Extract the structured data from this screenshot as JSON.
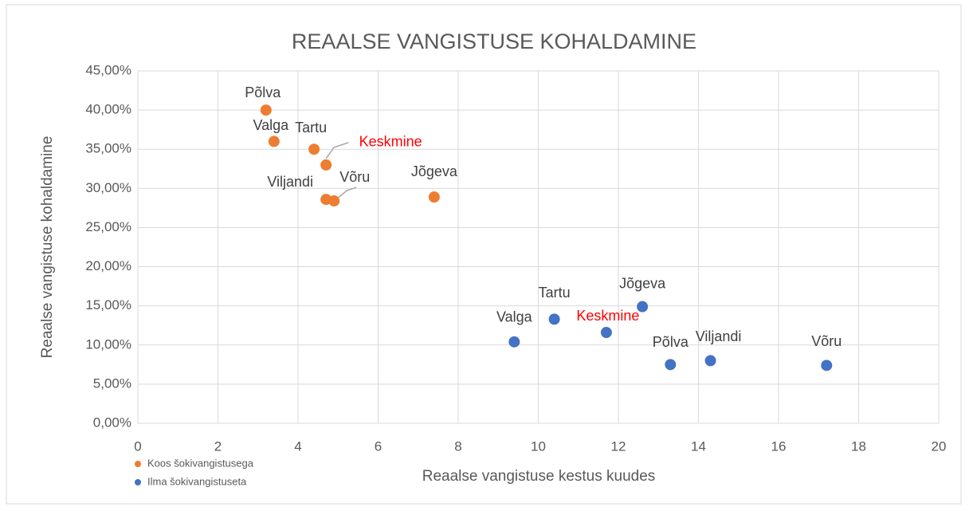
{
  "chart_data": {
    "type": "scatter",
    "title": "REAALSE VANGISTUSE KOHALDAMINE",
    "x_label": "Reaalse vangistuse kestus kuudes",
    "y_label": "Reaalse vangistuse kohaldamine",
    "xlim": [
      0,
      20
    ],
    "xticks": [
      0,
      2,
      4,
      6,
      8,
      10,
      12,
      14,
      16,
      18,
      20
    ],
    "ylim": [
      0,
      45
    ],
    "yticks": [
      {
        "value": 0,
        "label": "0,00%"
      },
      {
        "value": 5,
        "label": "5,00%"
      },
      {
        "value": 10,
        "label": "10,00%"
      },
      {
        "value": 15,
        "label": "15,00%"
      },
      {
        "value": 20,
        "label": "20,00%"
      },
      {
        "value": 25,
        "label": "25,00%"
      },
      {
        "value": 30,
        "label": "30,00%"
      },
      {
        "value": 35,
        "label": "35,00%"
      },
      {
        "value": 40,
        "label": "40,00%"
      },
      {
        "value": 45,
        "label": "45,00%"
      }
    ],
    "grid": true,
    "legend": "bottom-left",
    "series": [
      {
        "name": "Koos šokivangistusega",
        "color": "#ed7d31",
        "x": [
          3.2,
          3.4,
          4.4,
          4.7,
          4.7,
          4.9,
          7.4
        ],
        "values": [
          40,
          36,
          35,
          33,
          28.6,
          28.4,
          28.9
        ],
        "point_labels": [
          "Põlva",
          "Valga",
          "Tartu",
          "Keskmine",
          "Viljandi",
          "Võru",
          "Jõgeva"
        ],
        "label_colors": [
          "#404040",
          "#404040",
          "#404040",
          "#ff0000",
          "#404040",
          "#404040",
          "#404040"
        ]
      },
      {
        "name": "Ilma šokivangistuseta",
        "color": "#4472c4",
        "x": [
          9.4,
          10.4,
          11.7,
          12.6,
          13.3,
          14.3,
          17.2
        ],
        "values": [
          10.4,
          13.3,
          11.6,
          14.9,
          7.5,
          8.0,
          7.4
        ],
        "point_labels": [
          "Valga",
          "Tartu",
          "Keskmine",
          "Jõgeva",
          "Põlva",
          "Viljandi",
          "Võru"
        ],
        "label_colors": [
          "#404040",
          "#404040",
          "#ff0000",
          "#404040",
          "#404040",
          "#404040",
          "#404040"
        ]
      }
    ]
  }
}
